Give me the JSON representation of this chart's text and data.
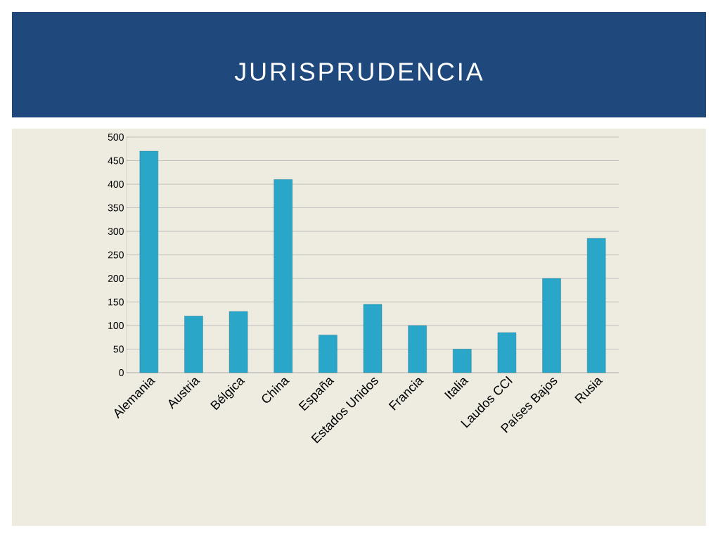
{
  "chart_data": {
    "type": "bar",
    "title": "JURISPRUDENCIA",
    "categories": [
      "Alemania",
      "Austria",
      "Bélgica",
      "China",
      "España",
      "Estados Unidos",
      "Francia",
      "Italia",
      "Laudos CCI",
      "Países Bajos",
      "Rusia"
    ],
    "values": [
      470,
      120,
      130,
      410,
      80,
      145,
      100,
      50,
      85,
      200,
      285
    ],
    "color": "#2aa6c8",
    "ylim": [
      0,
      500
    ],
    "yticks": [
      0,
      50,
      100,
      150,
      200,
      250,
      300,
      350,
      400,
      450,
      500
    ],
    "grid": "y"
  }
}
